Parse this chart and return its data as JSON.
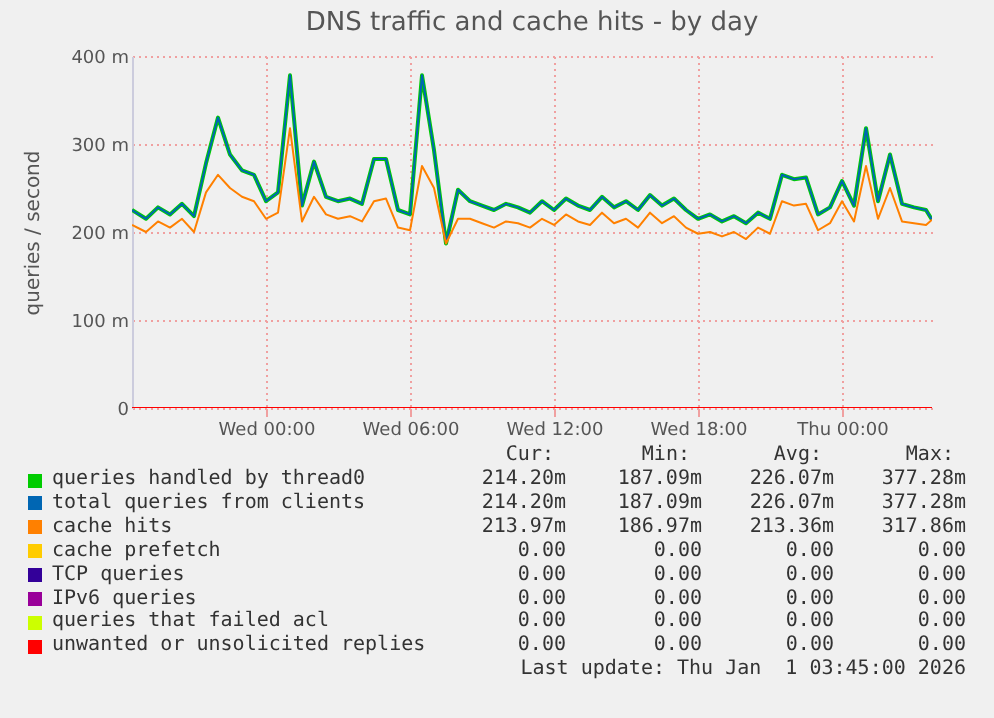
{
  "chart_data": {
    "type": "line",
    "title": "DNS traffic and cache hits - by day",
    "ylabel": "queries / second",
    "x": [
      "2025-12-30T18:25",
      "2025-12-30T19:00",
      "2025-12-30T19:30",
      "2025-12-30T20:00",
      "2025-12-30T20:30",
      "2025-12-30T21:00",
      "2025-12-30T21:30",
      "2025-12-30T22:00",
      "2025-12-30T22:30",
      "2025-12-30T23:00",
      "2025-12-30T23:30",
      "2025-12-31T00:00",
      "2025-12-31T00:30",
      "2025-12-31T01:00",
      "2025-12-31T01:30",
      "2025-12-31T02:00",
      "2025-12-31T02:30",
      "2025-12-31T03:00",
      "2025-12-31T03:30",
      "2025-12-31T04:00",
      "2025-12-31T04:30",
      "2025-12-31T05:00",
      "2025-12-31T05:30",
      "2025-12-31T06:00",
      "2025-12-31T06:30",
      "2025-12-31T07:00",
      "2025-12-31T07:30",
      "2025-12-31T08:00",
      "2025-12-31T08:30",
      "2025-12-31T09:00",
      "2025-12-31T09:30",
      "2025-12-31T10:00",
      "2025-12-31T10:30",
      "2025-12-31T11:00",
      "2025-12-31T11:30",
      "2025-12-31T12:00",
      "2025-12-31T12:30",
      "2025-12-31T13:00",
      "2025-12-31T13:30",
      "2025-12-31T14:00",
      "2025-12-31T14:30",
      "2025-12-31T15:00",
      "2025-12-31T15:30",
      "2025-12-31T16:00",
      "2025-12-31T16:30",
      "2025-12-31T17:00",
      "2025-12-31T17:30",
      "2025-12-31T18:00",
      "2025-12-31T18:30",
      "2025-12-31T19:00",
      "2025-12-31T19:30",
      "2025-12-31T20:00",
      "2025-12-31T20:30",
      "2025-12-31T21:00",
      "2025-12-31T21:30",
      "2025-12-31T22:00",
      "2025-12-31T22:30",
      "2025-12-31T23:00",
      "2025-12-31T23:30",
      "2026-01-01T00:00",
      "2026-01-01T00:30",
      "2026-01-01T01:00",
      "2026-01-01T01:30",
      "2026-01-01T02:00",
      "2026-01-01T02:30",
      "2026-01-01T03:00",
      "2026-01-01T03:30",
      "2026-01-01T03:45"
    ],
    "series": [
      {
        "name": "queries handled by thread0",
        "color": "#00cc00",
        "values": [
          225,
          215,
          228,
          220,
          232,
          218,
          278,
          330,
          288,
          270,
          265,
          235,
          245,
          378,
          230,
          280,
          240,
          235,
          238,
          232,
          283,
          283,
          225,
          220,
          378,
          293,
          187,
          248,
          235,
          230,
          225,
          232,
          228,
          222,
          235,
          225,
          238,
          230,
          225,
          240,
          228,
          235,
          225,
          242,
          230,
          238,
          225,
          215,
          220,
          212,
          218,
          210,
          222,
          215,
          265,
          260,
          262,
          220,
          228,
          258,
          230,
          318,
          235,
          288,
          232,
          228,
          225,
          214
        ]
      },
      {
        "name": "total queries from clients",
        "color": "#0066b3",
        "values": [
          225,
          215,
          228,
          220,
          232,
          218,
          278,
          330,
          288,
          270,
          265,
          235,
          245,
          378,
          230,
          280,
          240,
          235,
          238,
          232,
          283,
          283,
          225,
          220,
          378,
          293,
          187,
          248,
          235,
          230,
          225,
          232,
          228,
          222,
          235,
          225,
          238,
          230,
          225,
          240,
          228,
          235,
          225,
          242,
          230,
          238,
          225,
          215,
          220,
          212,
          218,
          210,
          222,
          215,
          265,
          260,
          262,
          220,
          228,
          258,
          230,
          318,
          235,
          288,
          232,
          228,
          225,
          214
        ]
      },
      {
        "name": "cache hits",
        "color": "#ff8000",
        "values": [
          208,
          200,
          212,
          205,
          215,
          200,
          245,
          265,
          250,
          240,
          235,
          215,
          222,
          318,
          212,
          240,
          220,
          215,
          218,
          212,
          235,
          238,
          205,
          202,
          275,
          250,
          187,
          215,
          215,
          210,
          205,
          212,
          210,
          205,
          215,
          208,
          220,
          212,
          208,
          222,
          210,
          215,
          205,
          222,
          210,
          218,
          205,
          198,
          200,
          195,
          200,
          192,
          205,
          198,
          235,
          230,
          232,
          202,
          210,
          235,
          212,
          275,
          215,
          250,
          212,
          210,
          208,
          214
        ]
      },
      {
        "name": "cache prefetch",
        "color": "#ffcc00",
        "values": [
          null,
          null,
          null,
          null,
          null,
          null,
          null,
          null,
          null,
          null,
          null,
          null,
          null,
          null,
          null,
          null,
          null,
          null,
          null,
          null,
          null,
          null,
          null,
          null,
          null,
          null,
          null,
          null,
          null,
          null,
          null,
          null,
          null,
          null,
          null,
          null,
          null,
          null,
          null,
          null,
          null,
          null,
          null,
          null,
          null,
          null,
          null,
          null,
          null,
          null,
          null,
          null,
          null,
          null,
          null,
          null,
          null,
          null,
          null,
          null,
          null,
          null,
          null,
          null,
          null,
          null,
          null,
          null
        ]
      },
      {
        "name": "TCP queries",
        "color": "#330099",
        "values": [
          null,
          null,
          null,
          null,
          null,
          null,
          null,
          null,
          null,
          null,
          null,
          null,
          null,
          null,
          null,
          null,
          null,
          null,
          null,
          null,
          null,
          null,
          null,
          null,
          null,
          null,
          null,
          null,
          null,
          null,
          null,
          null,
          null,
          null,
          null,
          null,
          null,
          null,
          null,
          null,
          null,
          null,
          null,
          null,
          null,
          null,
          null,
          null,
          null,
          null,
          null,
          null,
          null,
          null,
          null,
          null,
          null,
          null,
          null,
          null,
          null,
          null,
          null,
          null,
          null,
          null,
          null,
          null
        ]
      },
      {
        "name": "IPv6 queries",
        "color": "#990099",
        "values": [
          null,
          null,
          null,
          null,
          null,
          null,
          null,
          null,
          null,
          null,
          null,
          null,
          null,
          null,
          null,
          null,
          null,
          null,
          null,
          null,
          null,
          null,
          null,
          null,
          null,
          null,
          null,
          null,
          null,
          null,
          null,
          null,
          null,
          null,
          null,
          null,
          null,
          null,
          null,
          null,
          null,
          null,
          null,
          null,
          null,
          null,
          null,
          null,
          null,
          null,
          null,
          null,
          null,
          null,
          null,
          null,
          null,
          null,
          null,
          null,
          null,
          null,
          null,
          null,
          null,
          null,
          null,
          null
        ]
      },
      {
        "name": "queries that failed acl",
        "color": "#ccff00",
        "values": [
          null,
          null,
          null,
          null,
          null,
          null,
          null,
          null,
          null,
          null,
          null,
          null,
          null,
          null,
          null,
          null,
          null,
          null,
          null,
          null,
          null,
          null,
          null,
          null,
          null,
          null,
          null,
          null,
          null,
          null,
          null,
          null,
          null,
          null,
          null,
          null,
          null,
          null,
          null,
          null,
          null,
          null,
          null,
          null,
          null,
          null,
          null,
          null,
          null,
          null,
          null,
          null,
          null,
          null,
          null,
          null,
          null,
          null,
          null,
          null,
          null,
          null,
          null,
          null,
          null,
          null,
          null,
          null
        ]
      },
      {
        "name": "unwanted or unsolicited replies",
        "color": "#ff0000",
        "x": [
          "2025-12-30T18:25",
          "2026-01-01T03:45"
        ],
        "values": [
          0,
          0
        ]
      }
    ],
    "xlim": [
      "2025-12-30T18:25",
      "2026-01-01T03:45"
    ],
    "xticks": [
      {
        "value": "2025-12-31T00:00",
        "label": "Wed 00:00"
      },
      {
        "value": "2025-12-31T06:00",
        "label": "Wed 06:00"
      },
      {
        "value": "2025-12-31T12:00",
        "label": "Wed 12:00"
      },
      {
        "value": "2025-12-31T18:00",
        "label": "Wed 18:00"
      },
      {
        "value": "2026-01-01T00:00",
        "label": "Thu 00:00"
      }
    ],
    "ylim": [
      0,
      400
    ],
    "yticks": [
      0,
      {
        "value": 100,
        "label": "100 m"
      },
      {
        "value": 200,
        "label": "200 m"
      },
      {
        "value": 300,
        "label": "300 m"
      },
      {
        "value": 400,
        "label": "400 m"
      }
    ],
    "grid": true,
    "legend": "bottom",
    "annotations": [
      "Cur:",
      "Min:",
      "Avg:",
      "Max:",
      "214.20m",
      "187.09m",
      "226.07m",
      "377.28m",
      "214.20m",
      "187.09m",
      "226.07m",
      "377.28m",
      "213.97m",
      "186.97m",
      "213.36m",
      "317.86m",
      "0.00",
      "0.00",
      "0.00",
      "0.00",
      "0.00",
      "0.00",
      "0.00",
      "0.00",
      "0.00",
      "0.00",
      "0.00",
      "0.00",
      "0.00",
      "0.00",
      "0.00",
      "0.00",
      "0.00",
      "0.00",
      "0.00",
      "0.00",
      "Last update: Thu Jan  1 03:45:00 2026"
    ]
  }
}
